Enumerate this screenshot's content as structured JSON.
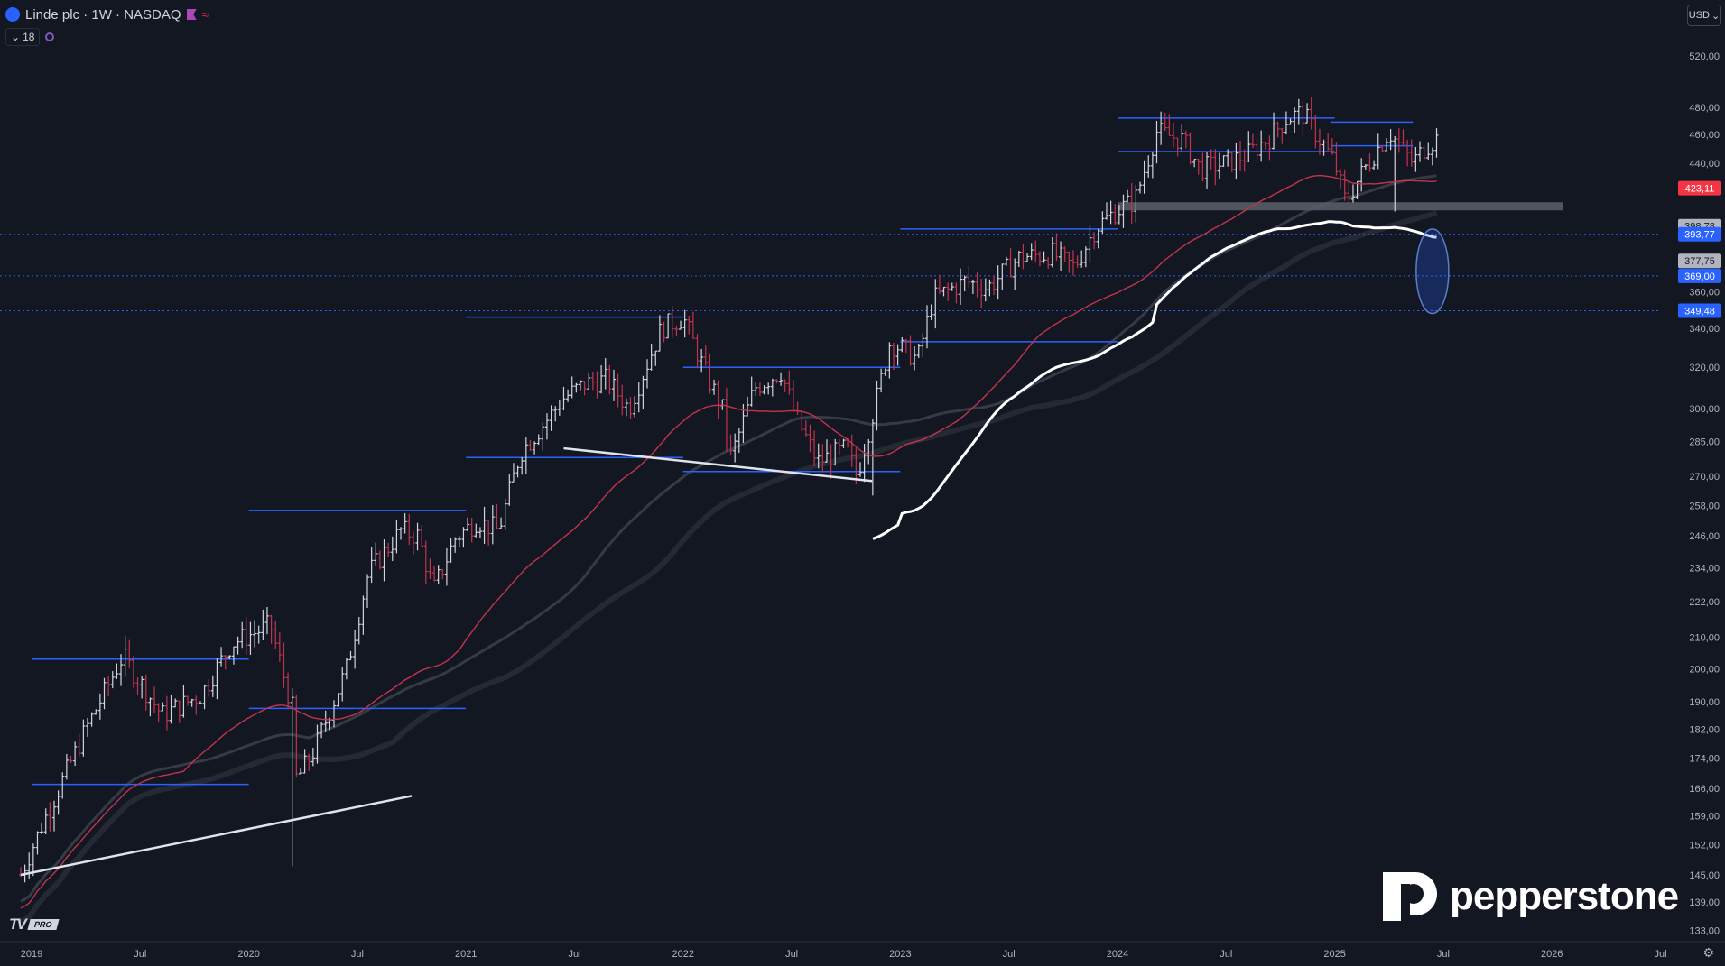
{
  "header": {
    "title": "Linde plc · 1W · NASDAQ",
    "indicator_count": "18",
    "currency": "USD"
  },
  "watermark": {
    "brand": "pepperstone",
    "tv_badge": "PRO"
  },
  "colors": {
    "background": "#131722",
    "up_bar": "#d1d4dc",
    "down_bar": "#c2344d",
    "level_line": "#2962ff",
    "ma_red": "#c2344d",
    "ma_white": "#ffffff",
    "price_tag_red": "#f23645",
    "price_tag_blue": "#2962ff",
    "price_tag_gray": "#b2b5be"
  },
  "chart_data": {
    "type": "ohlc",
    "title": "Linde plc · 1W · NASDAQ",
    "scale": "log",
    "x_ticks": [
      "2019",
      "Jul",
      "2020",
      "Jul",
      "2021",
      "Jul",
      "2022",
      "Jul",
      "2023",
      "Jul",
      "2024",
      "Jul",
      "2025",
      "Jul",
      "2026",
      "Jul"
    ],
    "y_ticks": [
      "520,00",
      "480,00",
      "460,00",
      "440,00",
      "400,00",
      "360,00",
      "340,00",
      "320,00",
      "300,00",
      "285,00",
      "270,00",
      "258,00",
      "246,00",
      "234,00",
      "222,00",
      "210,00",
      "200,00",
      "190,00",
      "182,00",
      "174,00",
      "166,00",
      "159,00",
      "152,00",
      "145,00",
      "139,00",
      "133,00"
    ],
    "price_labels": [
      {
        "text": "423,11",
        "value": 423.11,
        "style": "red"
      },
      {
        "text": "398,78",
        "value": 398.78,
        "style": "gray"
      },
      {
        "text": "393,77",
        "value": 393.77,
        "style": "blue"
      },
      {
        "text": "377,75",
        "value": 377.75,
        "style": "gray"
      },
      {
        "text": "369,00",
        "value": 369.0,
        "style": "blue"
      },
      {
        "text": "349,48",
        "value": 349.48,
        "style": "blue"
      }
    ],
    "anchors": [
      [
        2018.95,
        145
      ],
      [
        2019.05,
        157
      ],
      [
        2019.25,
        182
      ],
      [
        2019.42,
        204
      ],
      [
        2019.6,
        186
      ],
      [
        2019.78,
        192
      ],
      [
        2019.92,
        208
      ],
      [
        2020.1,
        214
      ],
      [
        2020.2,
        188
      ],
      [
        2020.22,
        168
      ],
      [
        2020.3,
        176
      ],
      [
        2020.45,
        200
      ],
      [
        2020.55,
        232
      ],
      [
        2020.7,
        248
      ],
      [
        2020.78,
        246
      ],
      [
        2020.85,
        226
      ],
      [
        2020.95,
        245
      ],
      [
        2021.05,
        252
      ],
      [
        2021.15,
        248
      ],
      [
        2021.25,
        280
      ],
      [
        2021.35,
        292
      ],
      [
        2021.45,
        305
      ],
      [
        2021.55,
        312
      ],
      [
        2021.65,
        314
      ],
      [
        2021.75,
        300
      ],
      [
        2021.9,
        340
      ],
      [
        2022.0,
        346
      ],
      [
        2022.1,
        318
      ],
      [
        2022.18,
        300
      ],
      [
        2022.22,
        278
      ],
      [
        2022.33,
        310
      ],
      [
        2022.45,
        318
      ],
      [
        2022.52,
        296
      ],
      [
        2022.62,
        276
      ],
      [
        2022.75,
        282
      ],
      [
        2022.8,
        270
      ],
      [
        2022.88,
        300
      ],
      [
        2022.95,
        332
      ],
      [
        2023.0,
        330
      ],
      [
        2023.08,
        324
      ],
      [
        2023.15,
        356
      ],
      [
        2023.3,
        366
      ],
      [
        2023.4,
        362
      ],
      [
        2023.55,
        380
      ],
      [
        2023.7,
        382
      ],
      [
        2023.8,
        374
      ],
      [
        2023.9,
        398
      ],
      [
        2024.0,
        409
      ],
      [
        2024.08,
        415
      ],
      [
        2024.18,
        462
      ],
      [
        2024.3,
        456
      ],
      [
        2024.38,
        436
      ],
      [
        2024.5,
        440
      ],
      [
        2024.6,
        446
      ],
      [
        2024.7,
        458
      ],
      [
        2024.78,
        472
      ],
      [
        2024.85,
        476
      ],
      [
        2024.95,
        452
      ],
      [
        2025.0,
        440
      ],
      [
        2025.05,
        414
      ],
      [
        2025.12,
        432
      ],
      [
        2025.18,
        446
      ],
      [
        2025.25,
        462
      ],
      [
        2025.3,
        452
      ],
      [
        2025.36,
        440
      ],
      [
        2025.42,
        452
      ],
      [
        2025.48,
        458
      ]
    ],
    "level_lines": [
      {
        "price": 472,
        "x0": 2024.0,
        "x1": 2025.0
      },
      {
        "price": 448,
        "x0": 2024.0,
        "x1": 2025.0
      },
      {
        "price": 469,
        "x0": 2024.98,
        "x1": 2025.36
      },
      {
        "price": 452,
        "x0": 2024.98,
        "x1": 2025.36
      },
      {
        "price": 397,
        "x0": 2023.0,
        "x1": 2024.0
      },
      {
        "price": 346,
        "x0": 2021.0,
        "x1": 2022.0
      },
      {
        "price": 320,
        "x0": 2022.0,
        "x1": 2023.0
      },
      {
        "price": 278,
        "x0": 2021.0,
        "x1": 2022.0
      },
      {
        "price": 272,
        "x0": 2022.0,
        "x1": 2023.0
      },
      {
        "price": 333,
        "x0": 2023.0,
        "x1": 2024.0
      },
      {
        "price": 256,
        "x0": 2020.0,
        "x1": 2021.0
      },
      {
        "price": 203,
        "x0": 2019.0,
        "x1": 2020.0
      },
      {
        "price": 188,
        "x0": 2020.0,
        "x1": 2021.0
      },
      {
        "price": 167,
        "x0": 2019.0,
        "x1": 2020.0
      }
    ],
    "trendlines": [
      {
        "from": [
          2018.95,
          145
        ],
        "to": [
          2020.75,
          164
        ]
      },
      {
        "from": [
          2021.45,
          282
        ],
        "to": [
          2022.87,
          268
        ]
      }
    ],
    "support_zone": {
      "price": 411,
      "x0": 2024.0,
      "x1": 2026.05
    },
    "ellipse": {
      "center_x": 2025.45,
      "center_price": 371,
      "top_price": 397,
      "bottom_price": 348
    }
  }
}
